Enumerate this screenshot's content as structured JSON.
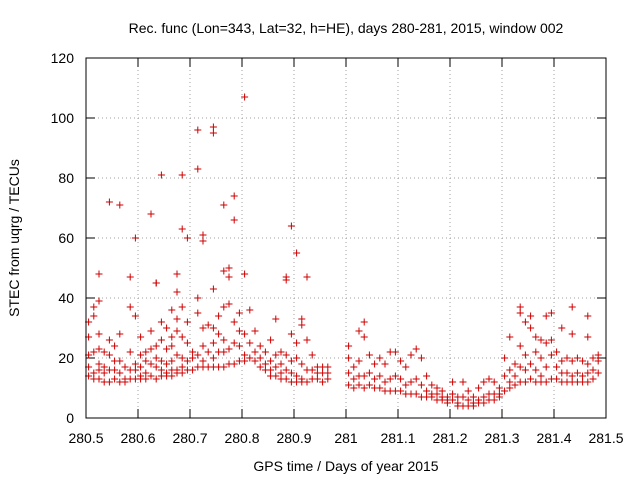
{
  "chart_data": {
    "type": "scatter",
    "title": "Rec. func (Lon=343, Lat=32, h=HE), days 280-281, 2015, window 002",
    "xlabel": "GPS time / Days of year 2015",
    "ylabel": "STEC from uqrg / TECUs",
    "xlim": [
      280.5,
      281.5
    ],
    "ylim": [
      0,
      120
    ],
    "xticks": [
      "280.5",
      "280.6",
      "280.7",
      "280.8",
      "280.9",
      "281",
      "281.1",
      "281.2",
      "281.3",
      "281.4",
      "281.5"
    ],
    "yticks": [
      "0",
      "20",
      "40",
      "60",
      "80",
      "100",
      "120"
    ],
    "grid": true,
    "legend": "none",
    "marker": "plus",
    "marker_color": "#cc0000",
    "points": [
      [
        280.505,
        21
      ],
      [
        280.505,
        17
      ],
      [
        280.505,
        14
      ],
      [
        280.505,
        27
      ],
      [
        280.505,
        32
      ],
      [
        280.515,
        37
      ],
      [
        280.515,
        34
      ],
      [
        280.515,
        22
      ],
      [
        280.515,
        15
      ],
      [
        280.515,
        13
      ],
      [
        280.525,
        48
      ],
      [
        280.525,
        39
      ],
      [
        280.525,
        28
      ],
      [
        280.525,
        23
      ],
      [
        280.525,
        18
      ],
      [
        280.525,
        16
      ],
      [
        280.525,
        13
      ],
      [
        280.535,
        22
      ],
      [
        280.535,
        17
      ],
      [
        280.535,
        15
      ],
      [
        280.535,
        12
      ],
      [
        280.545,
        72
      ],
      [
        280.545,
        26
      ],
      [
        280.545,
        21
      ],
      [
        280.545,
        16
      ],
      [
        280.545,
        12
      ],
      [
        280.555,
        24
      ],
      [
        280.555,
        19
      ],
      [
        280.555,
        16
      ],
      [
        280.555,
        13
      ],
      [
        280.565,
        71
      ],
      [
        280.565,
        28
      ],
      [
        280.565,
        19
      ],
      [
        280.565,
        15
      ],
      [
        280.565,
        12
      ],
      [
        280.575,
        17
      ],
      [
        280.575,
        13
      ],
      [
        280.575,
        12
      ],
      [
        280.585,
        47
      ],
      [
        280.585,
        37
      ],
      [
        280.585,
        22
      ],
      [
        280.585,
        16
      ],
      [
        280.585,
        13
      ],
      [
        280.595,
        60
      ],
      [
        280.595,
        34
      ],
      [
        280.595,
        18
      ],
      [
        280.595,
        16
      ],
      [
        280.595,
        13
      ],
      [
        280.605,
        27
      ],
      [
        280.605,
        21
      ],
      [
        280.605,
        17
      ],
      [
        280.605,
        14
      ],
      [
        280.605,
        13
      ],
      [
        280.615,
        22
      ],
      [
        280.615,
        19
      ],
      [
        280.615,
        15
      ],
      [
        280.615,
        13
      ],
      [
        280.625,
        68
      ],
      [
        280.625,
        29
      ],
      [
        280.625,
        23
      ],
      [
        280.625,
        18
      ],
      [
        280.625,
        14
      ],
      [
        280.635,
        45
      ],
      [
        280.635,
        45
      ],
      [
        280.635,
        24
      ],
      [
        280.635,
        20
      ],
      [
        280.635,
        17
      ],
      [
        280.635,
        13
      ],
      [
        280.645,
        81
      ],
      [
        280.645,
        32
      ],
      [
        280.645,
        26
      ],
      [
        280.645,
        19
      ],
      [
        280.645,
        16
      ],
      [
        280.645,
        14
      ],
      [
        280.655,
        30
      ],
      [
        280.655,
        23
      ],
      [
        280.655,
        18
      ],
      [
        280.655,
        15
      ],
      [
        280.655,
        14
      ],
      [
        280.665,
        36
      ],
      [
        280.665,
        27
      ],
      [
        280.665,
        24
      ],
      [
        280.665,
        19
      ],
      [
        280.665,
        16
      ],
      [
        280.665,
        14
      ],
      [
        280.675,
        48
      ],
      [
        280.675,
        42
      ],
      [
        280.675,
        33
      ],
      [
        280.675,
        29
      ],
      [
        280.675,
        21
      ],
      [
        280.675,
        16
      ],
      [
        280.675,
        15
      ],
      [
        280.685,
        81
      ],
      [
        280.685,
        63
      ],
      [
        280.685,
        37
      ],
      [
        280.685,
        27
      ],
      [
        280.685,
        20
      ],
      [
        280.685,
        17
      ],
      [
        280.685,
        15
      ],
      [
        280.695,
        60
      ],
      [
        280.695,
        32
      ],
      [
        280.695,
        25
      ],
      [
        280.695,
        19
      ],
      [
        280.695,
        16
      ],
      [
        280.705,
        22
      ],
      [
        280.705,
        20
      ],
      [
        280.705,
        16
      ],
      [
        280.715,
        96
      ],
      [
        280.715,
        83
      ],
      [
        280.715,
        40
      ],
      [
        280.715,
        35
      ],
      [
        280.715,
        21
      ],
      [
        280.715,
        17
      ],
      [
        280.725,
        61
      ],
      [
        280.725,
        59
      ],
      [
        280.725,
        30
      ],
      [
        280.725,
        24
      ],
      [
        280.725,
        19
      ],
      [
        280.725,
        17
      ],
      [
        280.735,
        31
      ],
      [
        280.735,
        22
      ],
      [
        280.735,
        17
      ],
      [
        280.745,
        97
      ],
      [
        280.745,
        95
      ],
      [
        280.745,
        43
      ],
      [
        280.745,
        30
      ],
      [
        280.745,
        25
      ],
      [
        280.745,
        20
      ],
      [
        280.745,
        17
      ],
      [
        280.755,
        34
      ],
      [
        280.755,
        28
      ],
      [
        280.755,
        22
      ],
      [
        280.755,
        17
      ],
      [
        280.765,
        71
      ],
      [
        280.765,
        49
      ],
      [
        280.765,
        37
      ],
      [
        280.765,
        26
      ],
      [
        280.765,
        22
      ],
      [
        280.765,
        17
      ],
      [
        280.775,
        50
      ],
      [
        280.775,
        47
      ],
      [
        280.775,
        38
      ],
      [
        280.775,
        23
      ],
      [
        280.775,
        18
      ],
      [
        280.785,
        74
      ],
      [
        280.785,
        66
      ],
      [
        280.785,
        32
      ],
      [
        280.785,
        25
      ],
      [
        280.785,
        18
      ],
      [
        280.795,
        35
      ],
      [
        280.795,
        29
      ],
      [
        280.795,
        24
      ],
      [
        280.795,
        19
      ],
      [
        280.805,
        107
      ],
      [
        280.805,
        48
      ],
      [
        280.805,
        28
      ],
      [
        280.805,
        21
      ],
      [
        280.805,
        19
      ],
      [
        280.815,
        36
      ],
      [
        280.815,
        25
      ],
      [
        280.815,
        20
      ],
      [
        280.825,
        29
      ],
      [
        280.825,
        22
      ],
      [
        280.825,
        19
      ],
      [
        280.835,
        24
      ],
      [
        280.835,
        20
      ],
      [
        280.835,
        17
      ],
      [
        280.845,
        22
      ],
      [
        280.845,
        18
      ],
      [
        280.845,
        16
      ],
      [
        280.855,
        26
      ],
      [
        280.855,
        19
      ],
      [
        280.855,
        16
      ],
      [
        280.855,
        14
      ],
      [
        280.865,
        33
      ],
      [
        280.865,
        21
      ],
      [
        280.865,
        17
      ],
      [
        280.865,
        14
      ],
      [
        280.875,
        22
      ],
      [
        280.875,
        18
      ],
      [
        280.875,
        15
      ],
      [
        280.875,
        13
      ],
      [
        280.885,
        47
      ],
      [
        280.885,
        46
      ],
      [
        280.885,
        21
      ],
      [
        280.885,
        16
      ],
      [
        280.885,
        13
      ],
      [
        280.895,
        64
      ],
      [
        280.895,
        28
      ],
      [
        280.895,
        19
      ],
      [
        280.895,
        15
      ],
      [
        280.895,
        12
      ],
      [
        280.905,
        55
      ],
      [
        280.905,
        25
      ],
      [
        280.905,
        20
      ],
      [
        280.905,
        14
      ],
      [
        280.905,
        12
      ],
      [
        280.915,
        33
      ],
      [
        280.915,
        31
      ],
      [
        280.915,
        18
      ],
      [
        280.915,
        13
      ],
      [
        280.915,
        12
      ],
      [
        280.925,
        47
      ],
      [
        280.925,
        26
      ],
      [
        280.925,
        16
      ],
      [
        280.925,
        12
      ],
      [
        280.935,
        21
      ],
      [
        280.935,
        16
      ],
      [
        280.935,
        13
      ],
      [
        280.945,
        17
      ],
      [
        280.945,
        15
      ],
      [
        280.945,
        13
      ],
      [
        280.955,
        17
      ],
      [
        280.955,
        15
      ],
      [
        280.955,
        12
      ],
      [
        280.965,
        17
      ],
      [
        280.965,
        15
      ],
      [
        280.965,
        13
      ],
      [
        281.005,
        24
      ],
      [
        281.005,
        20
      ],
      [
        281.005,
        15
      ],
      [
        281.005,
        11
      ],
      [
        281.015,
        17
      ],
      [
        281.015,
        13
      ],
      [
        281.015,
        10
      ],
      [
        281.025,
        29
      ],
      [
        281.025,
        19
      ],
      [
        281.025,
        14
      ],
      [
        281.025,
        11
      ],
      [
        281.035,
        32
      ],
      [
        281.035,
        27
      ],
      [
        281.035,
        14
      ],
      [
        281.035,
        10
      ],
      [
        281.045,
        21
      ],
      [
        281.045,
        15
      ],
      [
        281.045,
        11
      ],
      [
        281.055,
        18
      ],
      [
        281.055,
        13
      ],
      [
        281.055,
        10
      ],
      [
        281.065,
        20
      ],
      [
        281.065,
        14
      ],
      [
        281.065,
        10
      ],
      [
        281.075,
        18
      ],
      [
        281.075,
        12
      ],
      [
        281.075,
        9
      ],
      [
        281.085,
        22
      ],
      [
        281.085,
        13
      ],
      [
        281.085,
        9
      ],
      [
        281.095,
        22
      ],
      [
        281.095,
        14
      ],
      [
        281.095,
        9
      ],
      [
        281.105,
        19
      ],
      [
        281.105,
        13
      ],
      [
        281.105,
        9
      ],
      [
        281.115,
        17
      ],
      [
        281.115,
        11
      ],
      [
        281.115,
        8
      ],
      [
        281.125,
        21
      ],
      [
        281.125,
        12
      ],
      [
        281.125,
        8
      ],
      [
        281.135,
        23
      ],
      [
        281.135,
        13
      ],
      [
        281.135,
        8
      ],
      [
        281.145,
        20
      ],
      [
        281.145,
        11
      ],
      [
        281.145,
        7
      ],
      [
        281.155,
        14
      ],
      [
        281.155,
        9
      ],
      [
        281.155,
        7
      ],
      [
        281.165,
        11
      ],
      [
        281.165,
        8
      ],
      [
        281.165,
        7
      ],
      [
        281.175,
        10
      ],
      [
        281.175,
        8
      ],
      [
        281.175,
        6
      ],
      [
        281.185,
        9
      ],
      [
        281.185,
        7
      ],
      [
        281.185,
        6
      ],
      [
        281.195,
        7
      ],
      [
        281.195,
        6
      ],
      [
        281.195,
        5
      ],
      [
        281.205,
        12
      ],
      [
        281.205,
        8
      ],
      [
        281.205,
        6
      ],
      [
        281.215,
        7
      ],
      [
        281.215,
        5
      ],
      [
        281.215,
        4
      ],
      [
        281.225,
        12
      ],
      [
        281.225,
        7
      ],
      [
        281.225,
        4
      ],
      [
        281.235,
        9
      ],
      [
        281.235,
        6
      ],
      [
        281.235,
        4
      ],
      [
        281.245,
        7
      ],
      [
        281.245,
        5
      ],
      [
        281.245,
        4
      ],
      [
        281.255,
        10
      ],
      [
        281.255,
        6
      ],
      [
        281.255,
        5
      ],
      [
        281.265,
        12
      ],
      [
        281.265,
        7
      ],
      [
        281.265,
        5
      ],
      [
        281.275,
        13
      ],
      [
        281.275,
        8
      ],
      [
        281.275,
        6
      ],
      [
        281.285,
        12
      ],
      [
        281.285,
        8
      ],
      [
        281.285,
        6
      ],
      [
        281.295,
        10
      ],
      [
        281.295,
        8
      ],
      [
        281.295,
        7
      ],
      [
        281.305,
        20
      ],
      [
        281.305,
        14
      ],
      [
        281.305,
        9
      ],
      [
        281.315,
        27
      ],
      [
        281.315,
        16
      ],
      [
        281.315,
        12
      ],
      [
        281.315,
        10
      ],
      [
        281.325,
        18
      ],
      [
        281.325,
        14
      ],
      [
        281.325,
        11
      ],
      [
        281.335,
        37
      ],
      [
        281.335,
        35
      ],
      [
        281.335,
        24
      ],
      [
        281.335,
        17
      ],
      [
        281.335,
        12
      ],
      [
        281.345,
        32
      ],
      [
        281.345,
        21
      ],
      [
        281.345,
        16
      ],
      [
        281.345,
        12
      ],
      [
        281.355,
        34
      ],
      [
        281.355,
        30
      ],
      [
        281.355,
        18
      ],
      [
        281.355,
        13
      ],
      [
        281.365,
        27
      ],
      [
        281.365,
        22
      ],
      [
        281.365,
        16
      ],
      [
        281.365,
        12
      ],
      [
        281.375,
        26
      ],
      [
        281.375,
        20
      ],
      [
        281.375,
        14
      ],
      [
        281.375,
        12
      ],
      [
        281.385,
        34
      ],
      [
        281.385,
        25
      ],
      [
        281.385,
        17
      ],
      [
        281.385,
        12
      ],
      [
        281.395,
        35
      ],
      [
        281.395,
        26
      ],
      [
        281.395,
        21
      ],
      [
        281.395,
        13
      ],
      [
        281.405,
        22
      ],
      [
        281.405,
        17
      ],
      [
        281.405,
        13
      ],
      [
        281.415,
        30
      ],
      [
        281.415,
        19
      ],
      [
        281.415,
        15
      ],
      [
        281.415,
        12
      ],
      [
        281.425,
        20
      ],
      [
        281.425,
        15
      ],
      [
        281.425,
        12
      ],
      [
        281.435,
        37
      ],
      [
        281.435,
        28
      ],
      [
        281.435,
        19
      ],
      [
        281.435,
        14
      ],
      [
        281.435,
        12
      ],
      [
        281.445,
        20
      ],
      [
        281.445,
        15
      ],
      [
        281.445,
        12
      ],
      [
        281.455,
        19
      ],
      [
        281.455,
        14
      ],
      [
        281.455,
        12
      ],
      [
        281.465,
        34
      ],
      [
        281.465,
        27
      ],
      [
        281.465,
        18
      ],
      [
        281.465,
        15
      ],
      [
        281.465,
        12
      ],
      [
        281.475,
        20
      ],
      [
        281.475,
        16
      ],
      [
        281.475,
        13
      ],
      [
        281.485,
        21
      ],
      [
        281.485,
        19
      ],
      [
        281.485,
        15
      ]
    ]
  }
}
